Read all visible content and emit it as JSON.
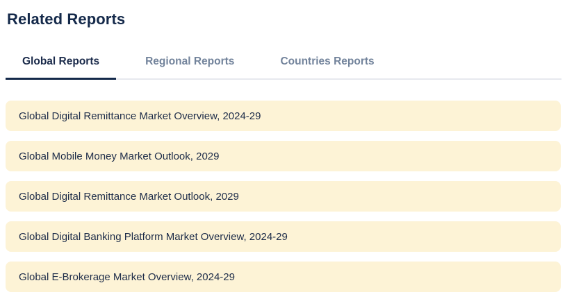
{
  "header": {
    "title": "Related Reports"
  },
  "tabs": {
    "items": [
      {
        "label": "Global Reports",
        "active": true
      },
      {
        "label": "Regional Reports",
        "active": false
      },
      {
        "label": "Countries Reports",
        "active": false
      }
    ]
  },
  "reports": [
    {
      "title": "Global Digital Remittance Market Overview, 2024-29"
    },
    {
      "title": "Global Mobile Money Market Outlook, 2029"
    },
    {
      "title": "Global Digital Remittance Market Outlook, 2029"
    },
    {
      "title": "Global Digital Banking Platform Market Overview, 2024-29"
    },
    {
      "title": "Global E-Brokerage Market Overview, 2024-29"
    }
  ],
  "colors": {
    "heading_text": "#14294A",
    "active_tab_text": "#1B2B4B",
    "active_tab_underline": "#14294A",
    "inactive_tab_text": "#72839B",
    "item_background": "#FDF3D6",
    "item_text": "#1D2C49",
    "divider": "#E7E9EE",
    "page_background": "#FFFFFF"
  }
}
